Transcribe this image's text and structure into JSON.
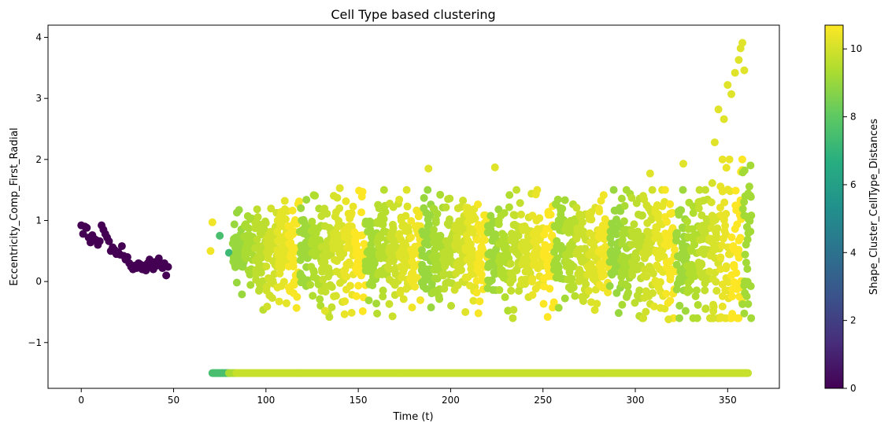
{
  "chart_data": {
    "type": "scatter",
    "title": "Cell Type based clustering",
    "xlabel": "Time (t)",
    "ylabel": "Eccentricity_Comp_First_Radial",
    "xlim": [
      -18,
      378
    ],
    "ylim": [
      -1.75,
      4.2
    ],
    "xticks": [
      0,
      50,
      100,
      150,
      200,
      250,
      300,
      350
    ],
    "yticks": [
      -1,
      0,
      1,
      2,
      3,
      4
    ],
    "grid": false,
    "colormap": "viridis",
    "colorbar": {
      "label": "Shape_Cluster_CellType_Distances",
      "min": 0,
      "max": 10.7,
      "ticks": [
        0,
        2,
        4,
        6,
        8,
        10
      ]
    },
    "series": [
      {
        "x": [
          0,
          1,
          2,
          3,
          4,
          5,
          6,
          7,
          8,
          9,
          10,
          11,
          12,
          13,
          14,
          15,
          16,
          17,
          18,
          19,
          20,
          21,
          22,
          23,
          24,
          25,
          26,
          27,
          28,
          29,
          30,
          31,
          32,
          33,
          34,
          35,
          36,
          37,
          38,
          39,
          40,
          41,
          42,
          43,
          44,
          45,
          46,
          47
        ],
        "y": [
          0.92,
          0.78,
          0.9,
          0.88,
          0.72,
          0.64,
          0.76,
          0.7,
          0.68,
          0.6,
          0.66,
          0.92,
          0.85,
          0.78,
          0.72,
          0.66,
          0.5,
          0.56,
          0.52,
          0.45,
          0.48,
          0.44,
          0.58,
          0.42,
          0.36,
          0.4,
          0.3,
          0.24,
          0.2,
          0.26,
          0.22,
          0.3,
          0.28,
          0.2,
          0.26,
          0.18,
          0.3,
          0.36,
          0.26,
          0.2,
          0.32,
          0.26,
          0.38,
          0.28,
          0.22,
          0.3,
          0.1,
          0.24
        ],
        "value": 0
      },
      {
        "x": [
          70,
          71,
          75,
          80
        ],
        "y": [
          0.5,
          0.97,
          0.75,
          0.47
        ],
        "value": [
          10.5,
          10.5,
          7.5,
          7.2
        ]
      },
      {
        "description": "band of points at the floor value over time",
        "y": -1.5,
        "x_range": [
          71,
          361
        ],
        "segments": [
          {
            "x": [
              71,
              80
            ],
            "value": 7.5
          },
          {
            "x": [
              80,
              84
            ],
            "value": 9.3
          },
          {
            "x": [
              84,
              361
            ],
            "value": 9.8
          }
        ]
      },
      {
        "description": "dense cloud of points in vertical stripes, one stripe per time step",
        "stripes_x": [
          82,
          362
        ],
        "core_y_range": [
          -0.1,
          1.2
        ],
        "value_range": [
          9.0,
          10.7
        ],
        "extreme_points": [
          {
            "x": 345,
            "y": 2.82
          },
          {
            "x": 350,
            "y": 3.22
          },
          {
            "x": 352,
            "y": 3.07
          },
          {
            "x": 354,
            "y": 3.42
          },
          {
            "x": 356,
            "y": 3.63
          },
          {
            "x": 357,
            "y": 3.82
          },
          {
            "x": 358,
            "y": 3.91
          },
          {
            "x": 359,
            "y": 3.46
          },
          {
            "x": 348,
            "y": 2.66
          },
          {
            "x": 343,
            "y": 2.28
          },
          {
            "x": 224,
            "y": 1.87
          },
          {
            "x": 188,
            "y": 1.85
          },
          {
            "x": 326,
            "y": 1.93
          },
          {
            "x": 140,
            "y": 1.53
          },
          {
            "x": 308,
            "y": 1.77
          },
          {
            "x": 208,
            "y": -0.5
          },
          {
            "x": 318,
            "y": -0.62
          },
          {
            "x": 132,
            "y": -0.48
          }
        ]
      }
    ]
  }
}
